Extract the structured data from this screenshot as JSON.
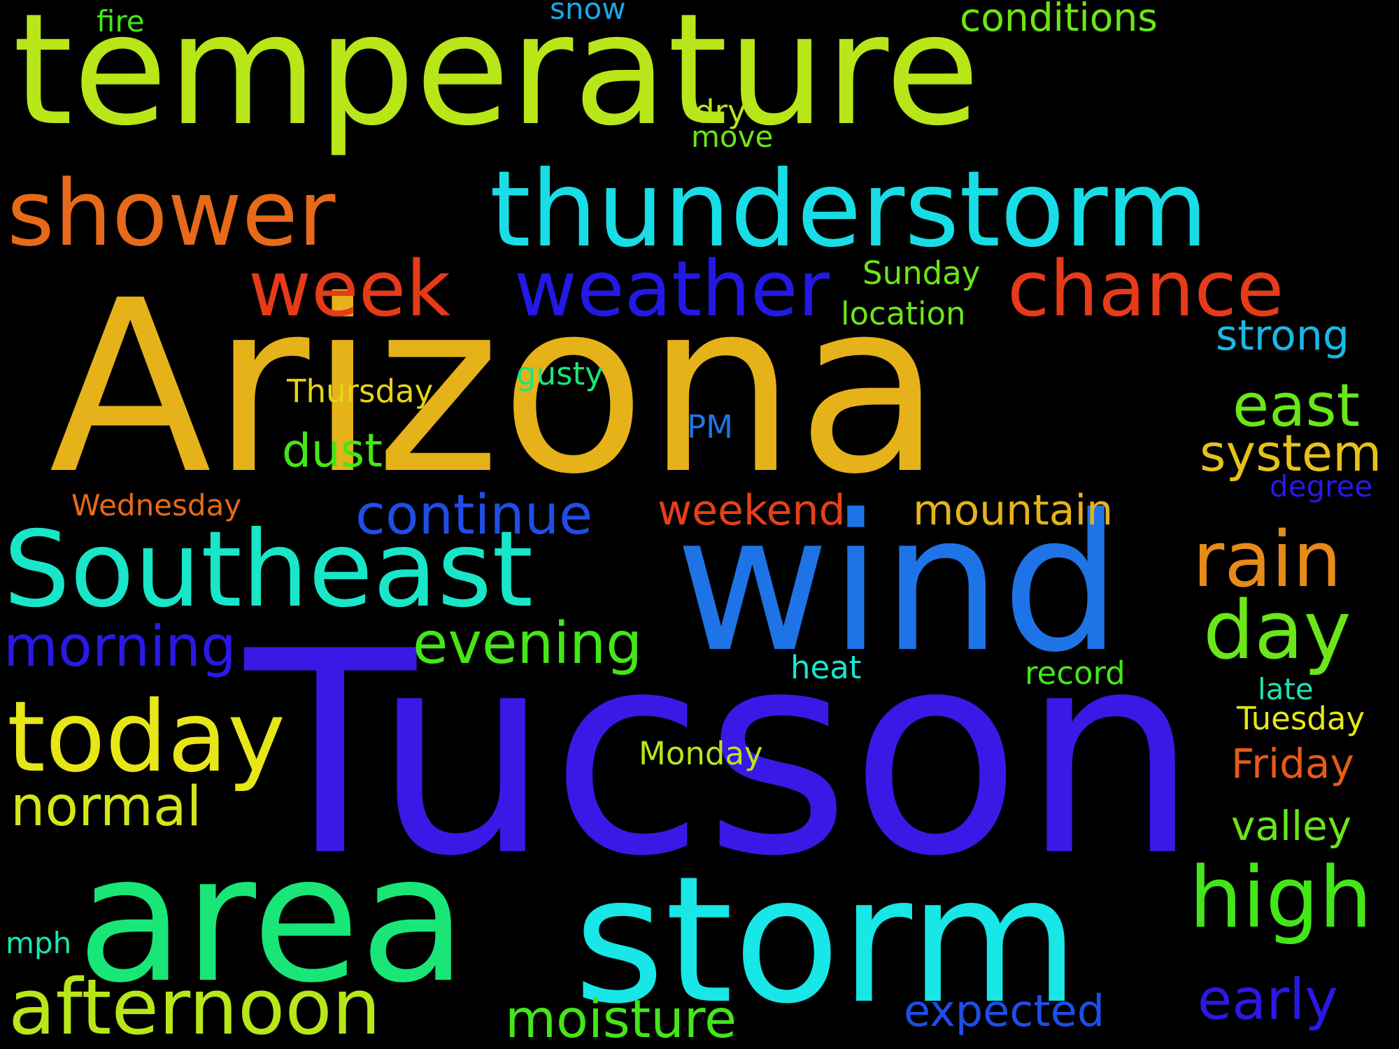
{
  "words": [
    {
      "text": "temperature",
      "color": "#b8e619"
    },
    {
      "text": "Arizona",
      "color": "#e6b219"
    },
    {
      "text": "Tucson",
      "color": "#3a19e6"
    },
    {
      "text": "wind",
      "color": "#1e74e6"
    },
    {
      "text": "Southeast",
      "color": "#19e6c8"
    },
    {
      "text": "area",
      "color": "#19e677"
    },
    {
      "text": "storm",
      "color": "#19e6e6"
    },
    {
      "text": "thunderstorm",
      "color": "#19dde6"
    },
    {
      "text": "shower",
      "color": "#e66a19"
    },
    {
      "text": "week",
      "color": "#e63a19"
    },
    {
      "text": "weather",
      "color": "#2219e6"
    },
    {
      "text": "chance",
      "color": "#e63a19"
    },
    {
      "text": "today",
      "color": "#e6e619"
    },
    {
      "text": "rain",
      "color": "#e68a19"
    },
    {
      "text": "day",
      "color": "#6ae619"
    },
    {
      "text": "high",
      "color": "#44e619"
    },
    {
      "text": "afternoon",
      "color": "#b8e619"
    },
    {
      "text": "evening",
      "color": "#44e619"
    },
    {
      "text": "morning",
      "color": "#2a19e6"
    },
    {
      "text": "continue",
      "color": "#1e4ee6"
    },
    {
      "text": "normal",
      "color": "#d2e619"
    },
    {
      "text": "moisture",
      "color": "#44e619"
    },
    {
      "text": "early",
      "color": "#2a19e6"
    },
    {
      "text": "expected",
      "color": "#1e4ee6"
    },
    {
      "text": "east",
      "color": "#6ae619"
    },
    {
      "text": "system",
      "color": "#e6c219"
    },
    {
      "text": "strong",
      "color": "#19b8e6"
    },
    {
      "text": "weekend",
      "color": "#e64019"
    },
    {
      "text": "mountain",
      "color": "#e6b219"
    },
    {
      "text": "dust",
      "color": "#44e619"
    },
    {
      "text": "Friday",
      "color": "#e65a19"
    },
    {
      "text": "valley",
      "color": "#6ae619"
    },
    {
      "text": "conditions",
      "color": "#6ae619"
    },
    {
      "text": "Thursday",
      "color": "#e6d419"
    },
    {
      "text": "Wednesday",
      "color": "#e66a19"
    },
    {
      "text": "location",
      "color": "#6ae619"
    },
    {
      "text": "Sunday",
      "color": "#6ae619"
    },
    {
      "text": "gusty",
      "color": "#19e677"
    },
    {
      "text": "record",
      "color": "#44e619"
    },
    {
      "text": "heat",
      "color": "#19e6d2"
    },
    {
      "text": "Monday",
      "color": "#b8e619"
    },
    {
      "text": "Tuesday",
      "color": "#e6e619"
    },
    {
      "text": "late",
      "color": "#19e6b2"
    },
    {
      "text": "degree",
      "color": "#2a19e6"
    },
    {
      "text": "PM",
      "color": "#1e74e6"
    },
    {
      "text": "dry",
      "color": "#b8e619"
    },
    {
      "text": "move",
      "color": "#6ae619"
    },
    {
      "text": "fire",
      "color": "#44e619"
    },
    {
      "text": "snow",
      "color": "#19a8e6"
    },
    {
      "text": "mph",
      "color": "#19e6b2"
    }
  ]
}
